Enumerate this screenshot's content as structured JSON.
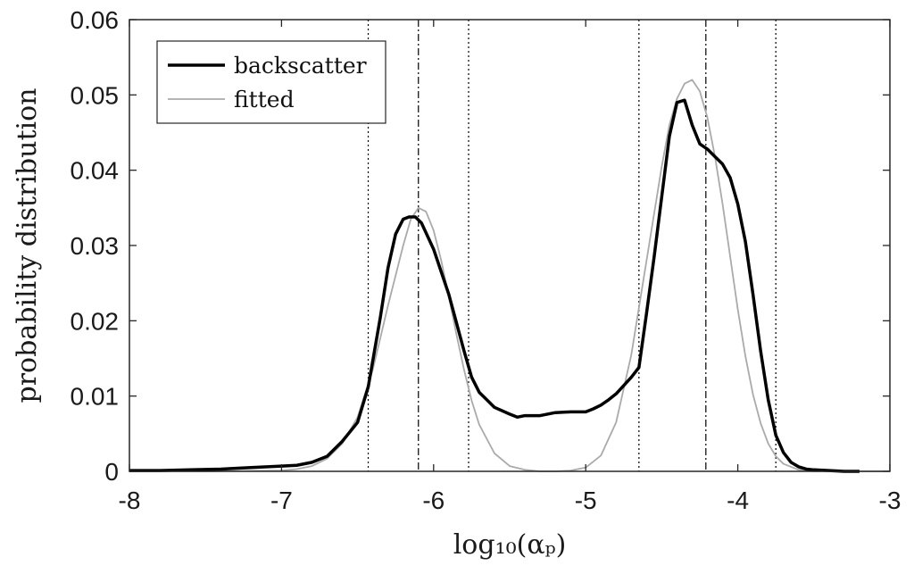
{
  "chart_data": {
    "type": "line",
    "xlabel": "log₁₀(αₚ)",
    "ylabel": "probability distribution",
    "xlim": [
      -8,
      -3
    ],
    "ylim": [
      0,
      0.06
    ],
    "xticks": [
      -8,
      -7,
      -6,
      -5,
      -4,
      -3
    ],
    "xtick_labels": [
      "-8",
      "-7",
      "-6",
      "-5",
      "-4",
      "-3"
    ],
    "yticks": [
      0,
      0.01,
      0.02,
      0.03,
      0.04,
      0.05,
      0.06
    ],
    "ytick_labels": [
      "0",
      "0.01",
      "0.02",
      "0.03",
      "0.04",
      "0.05",
      "0.06"
    ],
    "legend_position": "top-left",
    "series": [
      {
        "name": "backscatter",
        "color": "#000000",
        "style": "thick",
        "x": [
          -8,
          -7.8,
          -7.6,
          -7.4,
          -7.2,
          -7.0,
          -6.9,
          -6.8,
          -6.7,
          -6.6,
          -6.5,
          -6.43,
          -6.35,
          -6.3,
          -6.25,
          -6.2,
          -6.16,
          -6.12,
          -6.08,
          -6.0,
          -5.9,
          -5.8,
          -5.75,
          -5.7,
          -5.65,
          -5.6,
          -5.5,
          -5.45,
          -5.4,
          -5.3,
          -5.2,
          -5.1,
          -5.0,
          -4.95,
          -4.9,
          -4.85,
          -4.8,
          -4.7,
          -4.65,
          -4.6,
          -4.55,
          -4.5,
          -4.45,
          -4.4,
          -4.35,
          -4.3,
          -4.25,
          -4.2,
          -4.15,
          -4.1,
          -4.05,
          -4.0,
          -3.95,
          -3.9,
          -3.85,
          -3.8,
          -3.75,
          -3.7,
          -3.65,
          -3.6,
          -3.55,
          -3.5,
          -3.4,
          -3.3,
          -3.2
        ],
        "y": [
          0.0001,
          0.0001,
          0.0002,
          0.0003,
          0.0005,
          0.0007,
          0.0008,
          0.0012,
          0.002,
          0.004,
          0.0065,
          0.0112,
          0.0205,
          0.027,
          0.0315,
          0.0335,
          0.0338,
          0.0338,
          0.033,
          0.0295,
          0.0235,
          0.016,
          0.0125,
          0.0105,
          0.0095,
          0.0085,
          0.0076,
          0.0072,
          0.0074,
          0.0074,
          0.0078,
          0.0079,
          0.0079,
          0.0083,
          0.0088,
          0.0095,
          0.0103,
          0.0125,
          0.0138,
          0.021,
          0.0285,
          0.0365,
          0.0445,
          0.049,
          0.0493,
          0.046,
          0.0435,
          0.0428,
          0.0418,
          0.0408,
          0.039,
          0.0355,
          0.0305,
          0.0235,
          0.016,
          0.0095,
          0.0048,
          0.0025,
          0.0012,
          0.0006,
          0.0003,
          0.0002,
          0.0001,
          0.0,
          0.0
        ]
      },
      {
        "name": "fitted",
        "color": "#aaaaaa",
        "style": "thin",
        "x": [
          -8,
          -7.5,
          -7.0,
          -6.9,
          -6.8,
          -6.7,
          -6.6,
          -6.5,
          -6.4,
          -6.3,
          -6.2,
          -6.15,
          -6.1,
          -6.05,
          -6.0,
          -5.95,
          -5.9,
          -5.85,
          -5.8,
          -5.75,
          -5.7,
          -5.6,
          -5.5,
          -5.4,
          -5.3,
          -5.2,
          -5.1,
          -5.0,
          -4.9,
          -4.8,
          -4.7,
          -4.6,
          -4.5,
          -4.45,
          -4.4,
          -4.35,
          -4.3,
          -4.25,
          -4.2,
          -4.15,
          -4.1,
          -4.05,
          -4.0,
          -3.95,
          -3.9,
          -3.85,
          -3.8,
          -3.75,
          -3.7,
          -3.6,
          -3.5,
          -3.4,
          -3.3,
          -3.2,
          -3.0
        ],
        "y": [
          0,
          0,
          0.0001,
          0.0003,
          0.0007,
          0.0017,
          0.0037,
          0.0072,
          0.0135,
          0.022,
          0.03,
          0.0335,
          0.035,
          0.0345,
          0.032,
          0.028,
          0.0232,
          0.0182,
          0.0135,
          0.0094,
          0.0062,
          0.0024,
          0.0007,
          0.0002,
          0.0,
          0.0,
          0.0001,
          0.0005,
          0.0021,
          0.0065,
          0.0155,
          0.028,
          0.0405,
          0.046,
          0.0495,
          0.0515,
          0.052,
          0.0505,
          0.047,
          0.0418,
          0.0355,
          0.0285,
          0.0215,
          0.0153,
          0.0102,
          0.0064,
          0.0037,
          0.002,
          0.001,
          0.0002,
          0.0,
          0.0,
          0.0,
          0.0,
          0.0
        ]
      }
    ],
    "vertical_lines": [
      {
        "x": -6.43,
        "style": "dotted"
      },
      {
        "x": -6.1,
        "style": "dashdot"
      },
      {
        "x": -5.77,
        "style": "dotted"
      },
      {
        "x": -4.65,
        "style": "dotted"
      },
      {
        "x": -4.21,
        "style": "dashdot"
      },
      {
        "x": -3.75,
        "style": "dotted"
      }
    ]
  }
}
